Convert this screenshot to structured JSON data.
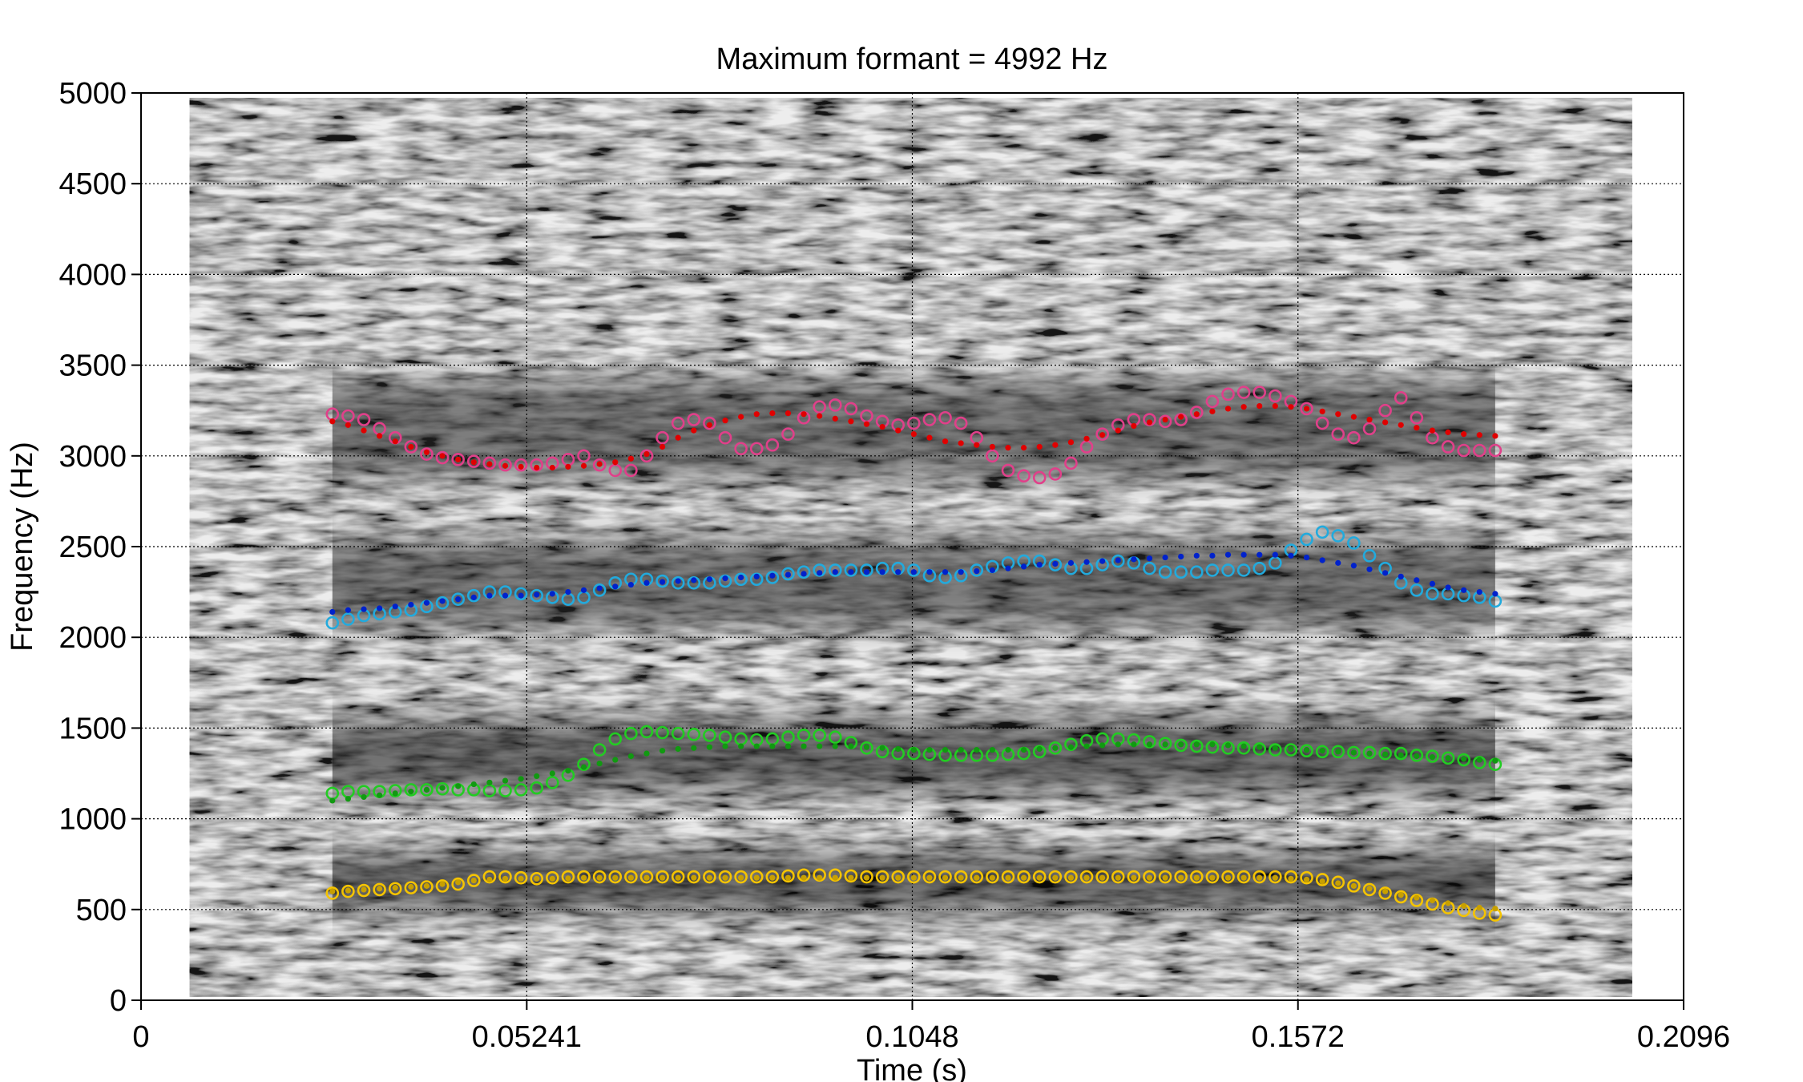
{
  "chart_data": {
    "type": "scatter",
    "title": "Maximum formant = 4992 Hz",
    "xlabel": "Time (s)",
    "ylabel": "Frequency (Hz)",
    "xlim": [
      0,
      0.2096
    ],
    "ylim": [
      0,
      5000
    ],
    "x_ticks": [
      "0",
      "0.05241",
      "0.1048",
      "0.1572",
      "0.2096"
    ],
    "x_tick_values": [
      0,
      0.05241,
      0.1048,
      0.1572,
      0.2096
    ],
    "y_ticks": [
      "0",
      "500",
      "1000",
      "1500",
      "2000",
      "2500",
      "3000",
      "3500",
      "4000",
      "4500",
      "5000"
    ],
    "y_tick_values": [
      0,
      500,
      1000,
      1500,
      2000,
      2500,
      3000,
      3500,
      4000,
      4500,
      5000
    ],
    "grid": true,
    "background": "spectrogram",
    "spectrogram_range": [
      0.0066,
      0.2026
    ],
    "colors": {
      "f1_circle": "#f5c400",
      "f1_dot": "#c8a000",
      "f2_circle": "#22cc22",
      "f2_dot": "#119911",
      "f3_circle": "#22aadd",
      "f3_dot": "#0022cc",
      "f4_circle": "#e0408a",
      "f4_dot": "#e00000"
    },
    "series": [
      {
        "marker": "circle",
        "color": "#f5c400",
        "x_start": 0.026,
        "x_end": 0.184,
        "values": [
          590,
          600,
          605,
          610,
          615,
          620,
          625,
          630,
          640,
          660,
          680,
          680,
          675,
          670,
          675,
          680,
          680,
          680,
          680,
          680,
          680,
          680,
          680,
          680,
          680,
          680,
          680,
          680,
          680,
          685,
          690,
          690,
          690,
          685,
          680,
          680,
          680,
          680,
          680,
          680,
          680,
          680,
          680,
          680,
          680,
          680,
          680,
          680,
          680,
          680,
          680,
          680,
          680,
          680,
          680,
          680,
          680,
          680,
          680,
          680,
          680,
          680,
          675,
          665,
          650,
          630,
          610,
          590,
          570,
          550,
          530,
          510,
          495,
          480,
          470
        ]
      },
      {
        "marker": "dot",
        "color": "#c8a000",
        "x_start": 0.026,
        "x_end": 0.184,
        "values": [
          600,
          605,
          610,
          615,
          620,
          625,
          630,
          640,
          650,
          660,
          665,
          670,
          670,
          670,
          670,
          672,
          675,
          675,
          675,
          675,
          675,
          675,
          675,
          675,
          675,
          675,
          675,
          675,
          675,
          675,
          675,
          675,
          675,
          675,
          675,
          675,
          675,
          675,
          675,
          675,
          675,
          675,
          675,
          675,
          675,
          675,
          675,
          675,
          675,
          675,
          675,
          675,
          675,
          675,
          675,
          675,
          675,
          675,
          675,
          675,
          675,
          670,
          665,
          655,
          645,
          630,
          615,
          600,
          580,
          565,
          550,
          535,
          520,
          510,
          505
        ]
      },
      {
        "marker": "circle",
        "color": "#22cc22",
        "x_start": 0.026,
        "x_end": 0.184,
        "values": [
          1140,
          1150,
          1150,
          1150,
          1155,
          1160,
          1160,
          1165,
          1160,
          1160,
          1155,
          1155,
          1160,
          1170,
          1200,
          1240,
          1300,
          1380,
          1440,
          1470,
          1480,
          1475,
          1470,
          1465,
          1460,
          1450,
          1440,
          1435,
          1440,
          1450,
          1460,
          1460,
          1450,
          1420,
          1390,
          1370,
          1360,
          1360,
          1355,
          1350,
          1350,
          1350,
          1350,
          1355,
          1360,
          1370,
          1390,
          1410,
          1430,
          1440,
          1440,
          1435,
          1425,
          1415,
          1405,
          1400,
          1395,
          1390,
          1390,
          1385,
          1380,
          1380,
          1375,
          1370,
          1370,
          1365,
          1365,
          1360,
          1360,
          1350,
          1345,
          1335,
          1325,
          1310,
          1300
        ]
      },
      {
        "marker": "dot",
        "color": "#119911",
        "x_start": 0.026,
        "x_end": 0.184,
        "values": [
          1100,
          1110,
          1120,
          1130,
          1140,
          1150,
          1160,
          1170,
          1180,
          1190,
          1200,
          1210,
          1220,
          1235,
          1250,
          1265,
          1285,
          1305,
          1325,
          1345,
          1360,
          1375,
          1385,
          1390,
          1395,
          1400,
          1400,
          1400,
          1400,
          1400,
          1400,
          1400,
          1400,
          1400,
          1395,
          1390,
          1385,
          1380,
          1380,
          1380,
          1380,
          1380,
          1380,
          1380,
          1380,
          1385,
          1390,
          1395,
          1400,
          1405,
          1410,
          1410,
          1410,
          1410,
          1410,
          1410,
          1410,
          1405,
          1400,
          1395,
          1390,
          1385,
          1380,
          1375,
          1370,
          1365,
          1360,
          1355,
          1350,
          1345,
          1340,
          1335,
          1330,
          1325,
          1320
        ]
      },
      {
        "marker": "circle",
        "color": "#22aadd",
        "x_start": 0.026,
        "x_end": 0.184,
        "values": [
          2080,
          2100,
          2120,
          2130,
          2140,
          2150,
          2170,
          2190,
          2210,
          2230,
          2250,
          2250,
          2240,
          2230,
          2220,
          2210,
          2220,
          2260,
          2300,
          2320,
          2320,
          2310,
          2300,
          2300,
          2300,
          2310,
          2320,
          2320,
          2330,
          2350,
          2360,
          2370,
          2370,
          2370,
          2370,
          2380,
          2380,
          2370,
          2340,
          2330,
          2340,
          2370,
          2390,
          2410,
          2420,
          2420,
          2400,
          2380,
          2380,
          2400,
          2420,
          2410,
          2380,
          2360,
          2360,
          2360,
          2370,
          2370,
          2370,
          2380,
          2410,
          2480,
          2540,
          2580,
          2560,
          2520,
          2450,
          2380,
          2300,
          2260,
          2240,
          2240,
          2230,
          2220,
          2200
        ]
      },
      {
        "marker": "dot",
        "color": "#0022cc",
        "x_start": 0.026,
        "x_end": 0.184,
        "values": [
          2140,
          2150,
          2155,
          2160,
          2170,
          2180,
          2190,
          2200,
          2210,
          2220,
          2230,
          2230,
          2230,
          2235,
          2240,
          2250,
          2260,
          2270,
          2280,
          2290,
          2300,
          2305,
          2310,
          2315,
          2320,
          2325,
          2330,
          2335,
          2340,
          2345,
          2350,
          2355,
          2360,
          2360,
          2360,
          2360,
          2360,
          2360,
          2360,
          2360,
          2360,
          2365,
          2370,
          2380,
          2390,
          2400,
          2405,
          2410,
          2415,
          2420,
          2425,
          2430,
          2435,
          2440,
          2445,
          2450,
          2450,
          2455,
          2455,
          2455,
          2455,
          2450,
          2440,
          2425,
          2410,
          2395,
          2375,
          2355,
          2335,
          2315,
          2295,
          2275,
          2260,
          2250,
          2240
        ]
      },
      {
        "marker": "circle",
        "color": "#e0408a",
        "x_start": 0.026,
        "x_end": 0.184,
        "values": [
          3230,
          3220,
          3200,
          3150,
          3100,
          3050,
          3010,
          2990,
          2980,
          2970,
          2960,
          2950,
          2950,
          2950,
          2960,
          2980,
          3000,
          2950,
          2920,
          2920,
          3000,
          3100,
          3180,
          3200,
          3180,
          3100,
          3040,
          3040,
          3060,
          3120,
          3210,
          3270,
          3280,
          3260,
          3220,
          3190,
          3170,
          3180,
          3200,
          3210,
          3180,
          3100,
          3000,
          2920,
          2890,
          2880,
          2900,
          2960,
          3050,
          3120,
          3170,
          3200,
          3200,
          3190,
          3200,
          3240,
          3300,
          3340,
          3350,
          3350,
          3330,
          3300,
          3260,
          3180,
          3120,
          3100,
          3150,
          3250,
          3320,
          3210,
          3100,
          3050,
          3030,
          3030,
          3030
        ]
      },
      {
        "marker": "dot",
        "color": "#e00000",
        "x_start": 0.026,
        "x_end": 0.184,
        "values": [
          3190,
          3170,
          3140,
          3110,
          3080,
          3050,
          3020,
          3000,
          2980,
          2965,
          2955,
          2945,
          2940,
          2935,
          2935,
          2940,
          2945,
          2955,
          2965,
          2985,
          3010,
          3050,
          3100,
          3140,
          3170,
          3195,
          3215,
          3230,
          3235,
          3235,
          3230,
          3220,
          3205,
          3190,
          3175,
          3160,
          3140,
          3120,
          3100,
          3080,
          3070,
          3060,
          3050,
          3045,
          3045,
          3050,
          3060,
          3075,
          3095,
          3115,
          3140,
          3165,
          3185,
          3200,
          3215,
          3230,
          3245,
          3260,
          3270,
          3275,
          3275,
          3270,
          3260,
          3245,
          3230,
          3215,
          3200,
          3185,
          3170,
          3155,
          3140,
          3130,
          3120,
          3115,
          3110
        ]
      }
    ]
  }
}
